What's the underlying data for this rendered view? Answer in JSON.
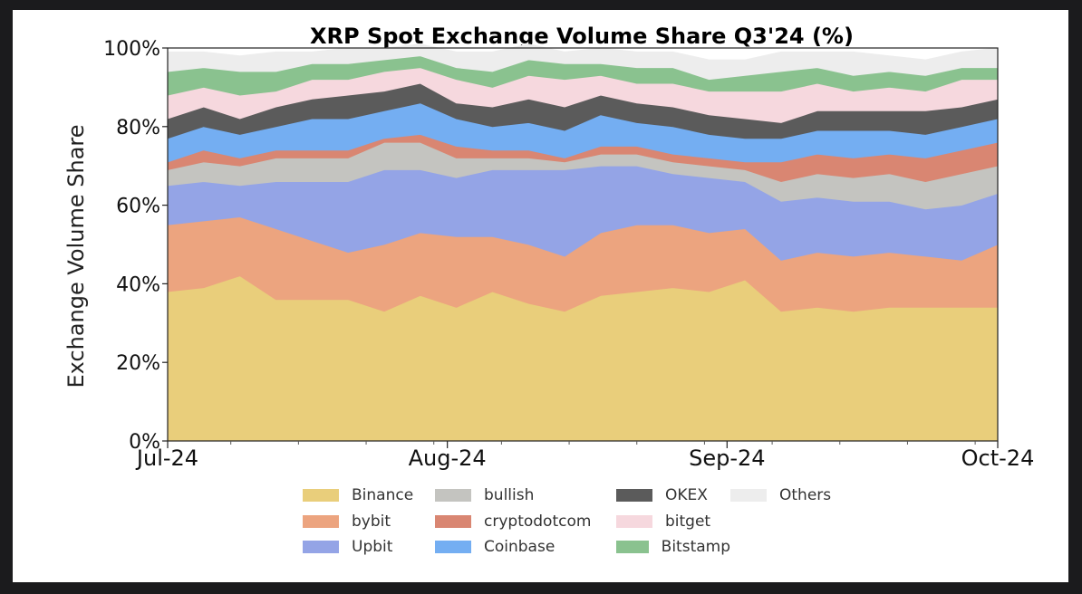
{
  "chart_data": {
    "type": "area",
    "stacked": true,
    "title": "XRP Spot Exchange Volume Share Q3'24 (%)",
    "ylabel": "Exchange Volume Share",
    "xlabel": "",
    "ylim": [
      0,
      100
    ],
    "yticks": [
      "0%",
      "20%",
      "40%",
      "60%",
      "80%",
      "100%"
    ],
    "xticks": [
      {
        "label": "Jul-24",
        "value": 0
      },
      {
        "label": "Aug-24",
        "value": 31
      },
      {
        "label": "Sep-24",
        "value": 62
      },
      {
        "label": "Oct-24",
        "value": 92
      }
    ],
    "x": [
      0,
      4,
      8,
      12,
      16,
      20,
      24,
      28,
      32,
      36,
      40,
      44,
      48,
      52,
      56,
      60,
      64,
      68,
      72,
      76,
      80,
      84,
      88,
      92
    ],
    "grid": false,
    "legend_position": "below",
    "series": [
      {
        "name": "Binance",
        "color": "#e9ce7b",
        "values": [
          38,
          39,
          42,
          36,
          36,
          36,
          33,
          37,
          34,
          38,
          35,
          33,
          37,
          38,
          39,
          38,
          41,
          33,
          34,
          33,
          34,
          34,
          34,
          34
        ]
      },
      {
        "name": "bybit",
        "color": "#eca47f",
        "values": [
          17,
          17,
          15,
          18,
          15,
          12,
          17,
          16,
          18,
          14,
          15,
          14,
          16,
          17,
          16,
          15,
          13,
          13,
          14,
          14,
          14,
          13,
          12,
          16
        ]
      },
      {
        "name": "Upbit",
        "color": "#94a4e6",
        "values": [
          10,
          10,
          8,
          12,
          15,
          18,
          19,
          16,
          15,
          17,
          19,
          22,
          17,
          15,
          13,
          14,
          12,
          15,
          14,
          14,
          13,
          12,
          14,
          13
        ]
      },
      {
        "name": "bullish",
        "color": "#c4c4c0",
        "values": [
          4,
          5,
          5,
          6,
          6,
          6,
          7,
          7,
          5,
          3,
          3,
          2,
          3,
          3,
          3,
          3,
          3,
          5,
          6,
          6,
          7,
          7,
          8,
          7
        ]
      },
      {
        "name": "cryptodotcom",
        "color": "#d98672",
        "values": [
          2,
          3,
          2,
          2,
          2,
          2,
          1,
          2,
          3,
          2,
          2,
          1,
          2,
          2,
          2,
          2,
          2,
          5,
          5,
          5,
          5,
          6,
          6,
          6
        ]
      },
      {
        "name": "Coinbase",
        "color": "#74aef2",
        "values": [
          6,
          6,
          6,
          6,
          8,
          8,
          7,
          8,
          7,
          6,
          7,
          7,
          8,
          6,
          7,
          6,
          6,
          6,
          6,
          7,
          6,
          6,
          6,
          6
        ]
      },
      {
        "name": "OKEX",
        "color": "#5b5b5b",
        "values": [
          5,
          5,
          4,
          5,
          5,
          6,
          5,
          5,
          4,
          5,
          6,
          6,
          5,
          5,
          5,
          5,
          5,
          4,
          5,
          5,
          5,
          6,
          5,
          5
        ]
      },
      {
        "name": "bitget",
        "color": "#f6d8de",
        "values": [
          6,
          5,
          6,
          4,
          5,
          4,
          5,
          4,
          6,
          5,
          6,
          7,
          5,
          5,
          6,
          6,
          7,
          8,
          7,
          5,
          6,
          5,
          7,
          5
        ]
      },
      {
        "name": "Bitstamp",
        "color": "#8ac28f",
        "values": [
          6,
          5,
          6,
          5,
          4,
          4,
          3,
          3,
          3,
          4,
          4,
          4,
          3,
          4,
          4,
          3,
          4,
          5,
          4,
          4,
          4,
          4,
          3,
          3
        ]
      },
      {
        "name": "Others",
        "color": "#ededed",
        "values": [
          5,
          4,
          4,
          5,
          3,
          4,
          3,
          3,
          4,
          5,
          4,
          3,
          4,
          4,
          4,
          5,
          4,
          5,
          4,
          6,
          4,
          4,
          4,
          5
        ]
      }
    ]
  }
}
